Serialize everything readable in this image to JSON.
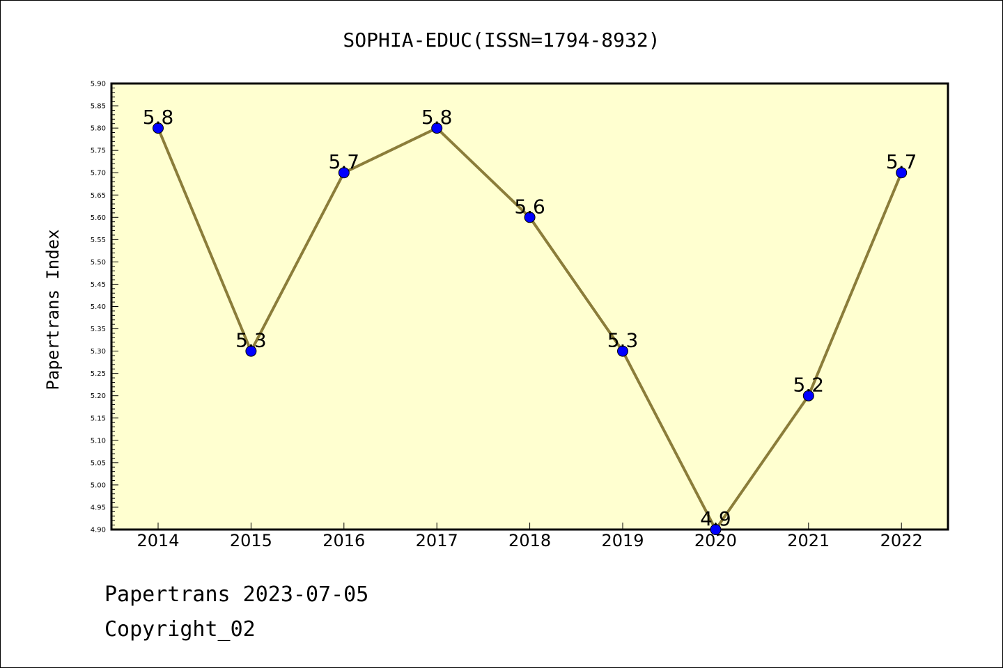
{
  "chart_data": {
    "type": "line",
    "title": "SOPHIA-EDUC(ISSN=1794-8932)",
    "xlabel": "",
    "ylabel": "Papertrans Index",
    "categories": [
      "2014",
      "2015",
      "2016",
      "2017",
      "2018",
      "2019",
      "2020",
      "2021",
      "2022"
    ],
    "values": [
      5.8,
      5.3,
      5.7,
      5.8,
      5.6,
      5.3,
      4.9,
      5.2,
      5.7
    ],
    "data_labels": [
      "5.8",
      "5.3",
      "5.7",
      "5.8",
      "5.6",
      "5.3",
      "4.9",
      "5.2",
      "5.7"
    ],
    "ylim": [
      4.9,
      5.9
    ],
    "yticks": [
      "4.90",
      "4.95",
      "5.00",
      "5.05",
      "5.10",
      "5.15",
      "5.20",
      "5.25",
      "5.30",
      "5.35",
      "5.40",
      "5.45",
      "5.50",
      "5.55",
      "5.60",
      "5.65",
      "5.70",
      "5.75",
      "5.80",
      "5.85",
      "5.90"
    ],
    "grid": false,
    "colors": {
      "plot_background": "#ffffd0",
      "line": "#8b7d3a",
      "marker": "#0000ff"
    }
  },
  "footer": {
    "line1": "Papertrans 2023-07-05",
    "line2": "Copyright_02"
  }
}
